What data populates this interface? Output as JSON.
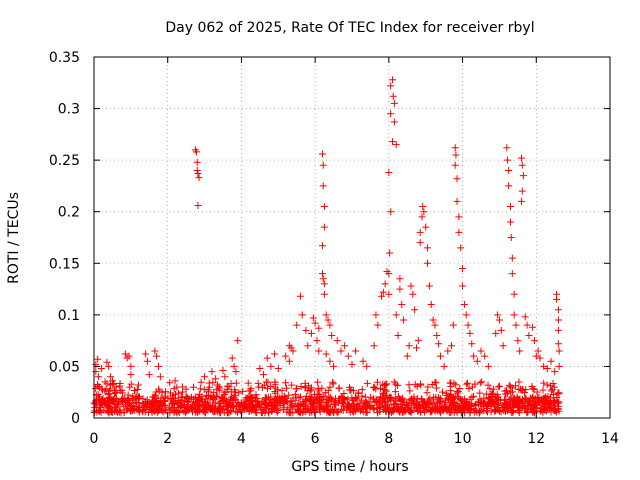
{
  "chart_data": {
    "type": "scatter",
    "title": "Day 062 of 2025, Rate Of TEC Index for receiver rbyl",
    "xlabel": "GPS time / hours",
    "ylabel": "ROTI / TECUs",
    "xlim": [
      0,
      14
    ],
    "ylim": [
      0,
      0.35
    ],
    "grid": true,
    "marker": "+",
    "color": "#ff0000",
    "xticks": [
      {
        "value": 0,
        "label": "0"
      },
      {
        "value": 2,
        "label": "2"
      },
      {
        "value": 4,
        "label": "4"
      },
      {
        "value": 6,
        "label": "6"
      },
      {
        "value": 8,
        "label": "8"
      },
      {
        "value": 10,
        "label": "10"
      },
      {
        "value": 12,
        "label": "12"
      },
      {
        "value": 14,
        "label": "14"
      }
    ],
    "yticks": [
      {
        "value": 0,
        "label": "0"
      },
      {
        "value": 0.05,
        "label": "0.05"
      },
      {
        "value": 0.1,
        "label": "0.1"
      },
      {
        "value": 0.15,
        "label": "0.15"
      },
      {
        "value": 0.2,
        "label": "0.2"
      },
      {
        "value": 0.25,
        "label": "0.25"
      },
      {
        "value": 0.3,
        "label": "0.3"
      },
      {
        "value": 0.35,
        "label": "0.35"
      }
    ],
    "series": [
      {
        "name": "ROTI",
        "points": [
          [
            0.05,
            0.052
          ],
          [
            0.05,
            0.045
          ],
          [
            0.1,
            0.057
          ],
          [
            0.12,
            0.04
          ],
          [
            0.15,
            0.03
          ],
          [
            0.2,
            0.048
          ],
          [
            0.3,
            0.035
          ],
          [
            0.35,
            0.054
          ],
          [
            0.4,
            0.05
          ],
          [
            0.45,
            0.04
          ],
          [
            0.5,
            0.036
          ],
          [
            0.6,
            0.03
          ],
          [
            0.85,
            0.062
          ],
          [
            0.9,
            0.058
          ],
          [
            0.95,
            0.06
          ],
          [
            1.0,
            0.05
          ],
          [
            1.0,
            0.042
          ],
          [
            1.4,
            0.062
          ],
          [
            1.45,
            0.055
          ],
          [
            1.5,
            0.042
          ],
          [
            1.65,
            0.065
          ],
          [
            1.7,
            0.06
          ],
          [
            1.75,
            0.05
          ],
          [
            1.8,
            0.04
          ],
          [
            2.2,
            0.036
          ],
          [
            2.4,
            0.03
          ],
          [
            2.5,
            0.028
          ],
          [
            2.75,
            0.26
          ],
          [
            2.78,
            0.258
          ],
          [
            2.8,
            0.248
          ],
          [
            2.8,
            0.24
          ],
          [
            2.82,
            0.237
          ],
          [
            2.85,
            0.233
          ],
          [
            2.82,
            0.206
          ],
          [
            3.0,
            0.04
          ],
          [
            3.2,
            0.045
          ],
          [
            3.3,
            0.038
          ],
          [
            3.5,
            0.046
          ],
          [
            3.55,
            0.04
          ],
          [
            3.75,
            0.058
          ],
          [
            3.8,
            0.05
          ],
          [
            3.85,
            0.045
          ],
          [
            3.9,
            0.075
          ],
          [
            4.5,
            0.048
          ],
          [
            4.6,
            0.042
          ],
          [
            4.7,
            0.058
          ],
          [
            4.8,
            0.05
          ],
          [
            4.9,
            0.062
          ],
          [
            5.0,
            0.048
          ],
          [
            5.2,
            0.06
          ],
          [
            5.3,
            0.055
          ],
          [
            5.3,
            0.07
          ],
          [
            5.35,
            0.068
          ],
          [
            5.4,
            0.065
          ],
          [
            5.5,
            0.09
          ],
          [
            5.6,
            0.118
          ],
          [
            5.65,
            0.1
          ],
          [
            5.75,
            0.085
          ],
          [
            5.8,
            0.07
          ],
          [
            5.9,
            0.082
          ],
          [
            5.95,
            0.097
          ],
          [
            6.0,
            0.092
          ],
          [
            6.05,
            0.075
          ],
          [
            6.1,
            0.065
          ],
          [
            6.1,
            0.087
          ],
          [
            6.2,
            0.256
          ],
          [
            6.22,
            0.245
          ],
          [
            6.22,
            0.225
          ],
          [
            6.25,
            0.205
          ],
          [
            6.25,
            0.185
          ],
          [
            6.2,
            0.167
          ],
          [
            6.2,
            0.14
          ],
          [
            6.22,
            0.135
          ],
          [
            6.25,
            0.13
          ],
          [
            6.25,
            0.12
          ],
          [
            6.3,
            0.1
          ],
          [
            6.35,
            0.095
          ],
          [
            6.4,
            0.09
          ],
          [
            6.45,
            0.08
          ],
          [
            6.3,
            0.062
          ],
          [
            6.4,
            0.055
          ],
          [
            6.5,
            0.05
          ],
          [
            6.6,
            0.075
          ],
          [
            6.7,
            0.065
          ],
          [
            6.8,
            0.07
          ],
          [
            6.9,
            0.06
          ],
          [
            7.0,
            0.052
          ],
          [
            7.1,
            0.065
          ],
          [
            7.3,
            0.055
          ],
          [
            7.4,
            0.05
          ],
          [
            7.6,
            0.07
          ],
          [
            7.65,
            0.1
          ],
          [
            7.7,
            0.09
          ],
          [
            7.8,
            0.118
          ],
          [
            7.85,
            0.122
          ],
          [
            7.9,
            0.13
          ],
          [
            7.95,
            0.142
          ],
          [
            8.0,
            0.14
          ],
          [
            8.0,
            0.12
          ],
          [
            8.05,
            0.295
          ],
          [
            8.1,
            0.328
          ],
          [
            8.05,
            0.322
          ],
          [
            8.12,
            0.312
          ],
          [
            8.15,
            0.305
          ],
          [
            8.1,
            0.268
          ],
          [
            8.2,
            0.265
          ],
          [
            8.15,
            0.287
          ],
          [
            8.0,
            0.238
          ],
          [
            8.05,
            0.2
          ],
          [
            8.02,
            0.16
          ],
          [
            8.2,
            0.1
          ],
          [
            8.25,
            0.08
          ],
          [
            8.3,
            0.135
          ],
          [
            8.3,
            0.125
          ],
          [
            8.35,
            0.11
          ],
          [
            8.4,
            0.095
          ],
          [
            8.5,
            0.06
          ],
          [
            8.55,
            0.07
          ],
          [
            8.6,
            0.128
          ],
          [
            8.65,
            0.12
          ],
          [
            8.7,
            0.105
          ],
          [
            8.75,
            0.068
          ],
          [
            8.8,
            0.075
          ],
          [
            8.85,
            0.17
          ],
          [
            8.85,
            0.18
          ],
          [
            8.9,
            0.195
          ],
          [
            8.92,
            0.205
          ],
          [
            8.95,
            0.2
          ],
          [
            9.0,
            0.185
          ],
          [
            9.05,
            0.165
          ],
          [
            9.05,
            0.15
          ],
          [
            9.1,
            0.128
          ],
          [
            9.15,
            0.11
          ],
          [
            9.2,
            0.095
          ],
          [
            9.25,
            0.09
          ],
          [
            9.3,
            0.08
          ],
          [
            9.35,
            0.072
          ],
          [
            9.4,
            0.06
          ],
          [
            9.5,
            0.05
          ],
          [
            9.6,
            0.065
          ],
          [
            9.7,
            0.07
          ],
          [
            9.75,
            0.09
          ],
          [
            9.8,
            0.262
          ],
          [
            9.82,
            0.255
          ],
          [
            9.8,
            0.245
          ],
          [
            9.85,
            0.232
          ],
          [
            9.85,
            0.21
          ],
          [
            9.9,
            0.195
          ],
          [
            9.9,
            0.18
          ],
          [
            9.95,
            0.165
          ],
          [
            10.0,
            0.145
          ],
          [
            10.0,
            0.128
          ],
          [
            10.05,
            0.11
          ],
          [
            10.1,
            0.1
          ],
          [
            10.15,
            0.09
          ],
          [
            10.2,
            0.082
          ],
          [
            10.25,
            0.072
          ],
          [
            10.3,
            0.06
          ],
          [
            10.4,
            0.055
          ],
          [
            10.5,
            0.065
          ],
          [
            10.6,
            0.06
          ],
          [
            10.7,
            0.05
          ],
          [
            10.9,
            0.082
          ],
          [
            10.95,
            0.1
          ],
          [
            11.0,
            0.095
          ],
          [
            11.05,
            0.085
          ],
          [
            11.1,
            0.07
          ],
          [
            11.2,
            0.262
          ],
          [
            11.22,
            0.25
          ],
          [
            11.25,
            0.24
          ],
          [
            11.25,
            0.225
          ],
          [
            11.3,
            0.205
          ],
          [
            11.3,
            0.19
          ],
          [
            11.32,
            0.175
          ],
          [
            11.35,
            0.155
          ],
          [
            11.35,
            0.14
          ],
          [
            11.4,
            0.12
          ],
          [
            11.4,
            0.1
          ],
          [
            11.45,
            0.09
          ],
          [
            11.5,
            0.075
          ],
          [
            11.55,
            0.065
          ],
          [
            11.6,
            0.252
          ],
          [
            11.62,
            0.245
          ],
          [
            11.65,
            0.235
          ],
          [
            11.62,
            0.22
          ],
          [
            11.6,
            0.21
          ],
          [
            11.7,
            0.098
          ],
          [
            11.75,
            0.09
          ],
          [
            11.8,
            0.08
          ],
          [
            11.9,
            0.088
          ],
          [
            11.95,
            0.075
          ],
          [
            12.0,
            0.06
          ],
          [
            12.05,
            0.065
          ],
          [
            12.1,
            0.058
          ],
          [
            12.2,
            0.05
          ],
          [
            12.3,
            0.048
          ],
          [
            12.4,
            0.055
          ],
          [
            12.5,
            0.045
          ],
          [
            12.55,
            0.12
          ],
          [
            12.55,
            0.115
          ],
          [
            12.6,
            0.105
          ],
          [
            12.6,
            0.095
          ],
          [
            12.6,
            0.085
          ],
          [
            12.6,
            0.072
          ],
          [
            12.62,
            0.065
          ],
          [
            12.62,
            0.05
          ]
        ],
        "baseline_band": {
          "x_start": 0,
          "x_end": 12.62,
          "y_min": 0.005,
          "y_max": 0.035,
          "y_typical": 0.018
        }
      }
    ]
  }
}
